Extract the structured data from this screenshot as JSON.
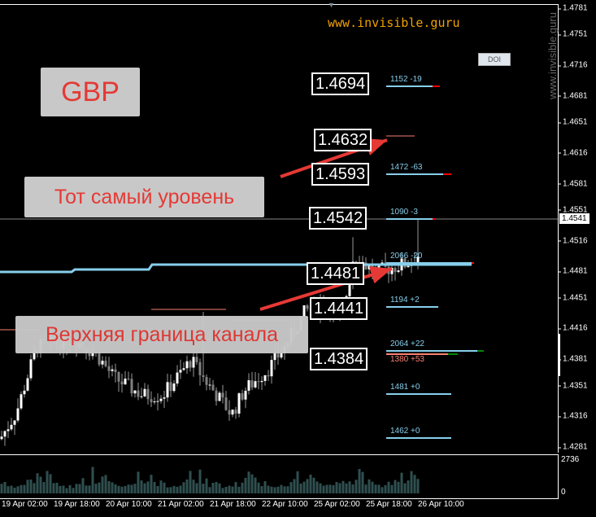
{
  "symbol_label": "GBP",
  "watermark": "www.invisible.guru",
  "vertical_watermark": "www.invisible.guru",
  "doi_button": "DOI",
  "notes": {
    "level": "Тот самый уровень",
    "channel": "Верхняя граница канала"
  },
  "price_axis": [
    "1.4781",
    "1.4751",
    "1.4716",
    "1.4681",
    "1.4651",
    "1.4616",
    "1.4581",
    "1.4551",
    "1.4516",
    "1.4481",
    "1.4451",
    "1.4416",
    "1.4381",
    "1.4351",
    "1.4316",
    "1.4281"
  ],
  "current_price": "1.4541",
  "price_boxes": [
    "1.4694",
    "1.4632",
    "1.4593",
    "1.4542",
    "1.4481",
    "1.4441",
    "1.4384"
  ],
  "levels": [
    {
      "label": "1152 -19",
      "color": "#87ceeb"
    },
    {
      "label": "1472 -63",
      "color": "#87ceeb"
    },
    {
      "label": "1090 -3",
      "color": "#87ceeb"
    },
    {
      "label": "2066 -20",
      "color": "#87ceeb"
    },
    {
      "label": "1194 +2",
      "color": "#87ceeb"
    },
    {
      "label": "2064 +22",
      "color": "#87ceeb"
    },
    {
      "label": "1380 +53",
      "color": "#fa8072"
    },
    {
      "label": "1481 +0",
      "color": "#87ceeb"
    },
    {
      "label": "1462 +0",
      "color": "#87ceeb"
    }
  ],
  "volume_axis": {
    "max": "2736",
    "min": "0"
  },
  "time_axis": [
    "19 Apr 02:00",
    "19 Apr 18:00",
    "20 Apr 10:00",
    "21 Apr 02:00",
    "21 Apr 18:00",
    "22 Apr 10:00",
    "25 Apr 02:00",
    "25 Apr 18:00",
    "26 Apr 10:00"
  ],
  "colors": {
    "accent_red": "#e53935",
    "level_blue": "#87ceeb",
    "watermark": "#f0a000",
    "bull": "#ffffff",
    "bear": "#808080",
    "volume": "#2f4f4f"
  }
}
